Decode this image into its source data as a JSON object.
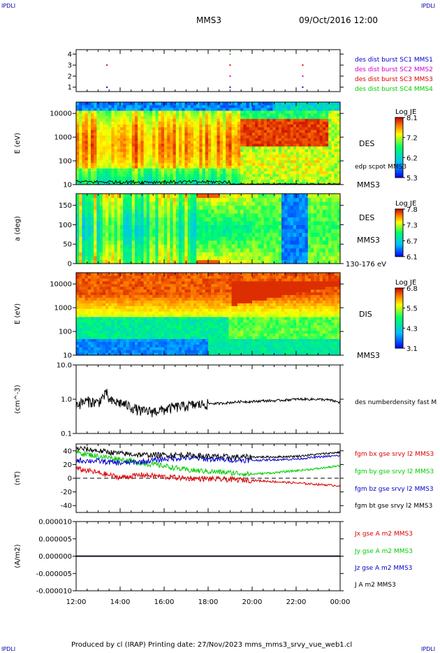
{
  "header": {
    "left_logo": "IPDLI",
    "right_logo": "IPDLI",
    "spacecraft": "MMS3",
    "date": "09/Oct/2016 12:00"
  },
  "footer": {
    "left_logo": "IPDLI",
    "right_logo": "IPDLI",
    "credit": "Produced by cl (IRAP)   Printing date: 27/Nov/2023   mms_mms3_srvy_vue_web1.cl"
  },
  "time_axis": {
    "ticks": [
      "12:00",
      "14:00",
      "16:00",
      "18:00",
      "20:00",
      "22:00",
      "00:00"
    ]
  },
  "colors": {
    "blue": "#0000cc",
    "magenta": "#cc00cc",
    "red": "#dd0000",
    "green": "#00cc00",
    "black": "#000000"
  },
  "chart_data": [
    {
      "type": "scatter",
      "panel": "burst",
      "x_unit": "hours since 12:00",
      "xlim": [
        0,
        12
      ],
      "ylim": [
        0.6,
        4.4
      ],
      "yticks": [
        "1",
        "2",
        "3",
        "4"
      ],
      "legend": [
        {
          "label": "des dist burst SC1 MMS1",
          "color": "#0000cc"
        },
        {
          "label": "des dist burst SC2 MMS2",
          "color": "#cc00cc"
        },
        {
          "label": "des dist burst SC3 MMS3",
          "color": "#dd0000"
        },
        {
          "label": "des dist burst SC4 MMS4",
          "color": "#00cc00"
        }
      ],
      "points": [
        {
          "x": 1.4,
          "y": 1,
          "color": "#0000cc"
        },
        {
          "x": 1.4,
          "y": 3,
          "color": "#dd0000"
        },
        {
          "x": 7.0,
          "y": 4,
          "color": "#00cc00"
        },
        {
          "x": 7.0,
          "y": 3,
          "color": "#dd0000"
        },
        {
          "x": 7.0,
          "y": 2,
          "color": "#cc00cc"
        },
        {
          "x": 7.0,
          "y": 1,
          "color": "#0000cc"
        },
        {
          "x": 10.3,
          "y": 3,
          "color": "#dd0000"
        },
        {
          "x": 10.3,
          "y": 2,
          "color": "#cc00cc"
        },
        {
          "x": 10.3,
          "y": 1,
          "color": "#0000cc"
        }
      ]
    },
    {
      "type": "heatmap",
      "panel": "des_energy",
      "ylabel": "E (eV)",
      "yscale": "log",
      "ylim": [
        10,
        30000
      ],
      "yticks": [
        "10",
        "100",
        "1000",
        "10000"
      ],
      "label": "DES",
      "spacecraft": "MMS3",
      "overlay_label": "edp scpot MMS3",
      "colorbar": {
        "title": "Log JE",
        "ticks": [
          "8.1",
          "7.2",
          "6.2",
          "5.3"
        ]
      },
      "bands": [
        {
          "t": [
            0,
            7.5
          ],
          "e_range": [
            20,
            2000
          ],
          "level": "green-yellow, variable"
        },
        {
          "t": [
            7.5,
            11.5
          ],
          "e_range": [
            500,
            3000
          ],
          "level": "red"
        },
        {
          "t": [
            0,
            12
          ],
          "e_range": [
            10000,
            30000
          ],
          "level": "blue"
        }
      ]
    },
    {
      "type": "heatmap",
      "panel": "des_pitch",
      "ylabel": "a (deg)",
      "ylim": [
        0,
        180
      ],
      "yticks": [
        "0",
        "50",
        "100",
        "150"
      ],
      "label": "DES",
      "spacecraft": "MMS3",
      "energy_range": "130-176 eV",
      "colorbar": {
        "title": "Log JE",
        "ticks": [
          "7.8",
          "7.3",
          "6.7",
          "6.1"
        ]
      }
    },
    {
      "type": "heatmap",
      "panel": "dis_energy",
      "ylabel": "E (eV)",
      "yscale": "log",
      "ylim": [
        10,
        30000
      ],
      "yticks": [
        "10",
        "100",
        "1000",
        "10000"
      ],
      "label": "DIS",
      "spacecraft": "MMS3",
      "colorbar": {
        "title": "Log JE",
        "ticks": [
          "6.8",
          "5.5",
          "4.3",
          "3.1"
        ]
      }
    },
    {
      "type": "line",
      "panel": "density",
      "ylabel": "(cm^-3)",
      "yscale": "log",
      "ylim": [
        0.1,
        10.0
      ],
      "yticks": [
        "0.1",
        "1.0",
        "10.0"
      ],
      "series": [
        {
          "name": "des numberdensity fast M",
          "color": "#000000",
          "x": [
            0,
            0.5,
            1.0,
            1.4,
            1.5,
            2.0,
            2.5,
            3.0,
            3.5,
            4.0,
            4.5,
            5.0,
            5.5,
            6.0,
            6.5,
            7.0,
            7.5,
            8.0,
            8.5,
            9.0,
            9.5,
            10.0,
            10.5,
            11.0,
            11.5,
            12.0
          ],
          "y": [
            0.7,
            0.9,
            0.8,
            1.5,
            0.9,
            0.8,
            0.6,
            0.45,
            0.45,
            0.5,
            0.6,
            0.65,
            0.7,
            0.75,
            0.75,
            0.8,
            0.85,
            0.85,
            0.9,
            0.9,
            0.95,
            1.0,
            1.0,
            1.0,
            0.95,
            0.8
          ]
        }
      ]
    },
    {
      "type": "line",
      "panel": "bfield",
      "ylabel": "(nT)",
      "ylim": [
        -50,
        50
      ],
      "yticks": [
        "-40",
        "-20",
        "0",
        "20",
        "40"
      ],
      "series": [
        {
          "name": "fgm bx gse srvy l2 MMS3",
          "color": "#dd0000",
          "x": [
            0,
            1,
            2,
            3,
            4,
            5,
            6,
            7,
            8,
            9,
            10,
            11,
            12
          ],
          "y": [
            14,
            8,
            1,
            5,
            2,
            0,
            -1,
            -2,
            -3,
            -5,
            -7,
            -9,
            -11
          ]
        },
        {
          "name": "fgm by gse srvy l2 MMS3",
          "color": "#00cc00",
          "x": [
            0,
            1,
            2,
            3,
            4,
            5,
            6,
            7,
            8,
            9,
            10,
            11,
            12
          ],
          "y": [
            38,
            32,
            28,
            22,
            18,
            12,
            10,
            8,
            6,
            8,
            11,
            14,
            18
          ]
        },
        {
          "name": "fgm bz gse srvy l2 MMS3",
          "color": "#0000cc",
          "x": [
            0,
            1,
            2,
            3,
            4,
            5,
            6,
            7,
            8,
            9,
            10,
            11,
            12
          ],
          "y": [
            26,
            25,
            22,
            24,
            28,
            30,
            28,
            27,
            26,
            27,
            28,
            31,
            33
          ]
        },
        {
          "name": "fgm bt gse srvy l2 MMS3",
          "color": "#000000",
          "x": [
            0,
            1,
            2,
            3,
            4,
            5,
            6,
            7,
            8,
            9,
            10,
            11,
            12
          ],
          "y": [
            44,
            40,
            36,
            34,
            34,
            34,
            32,
            31,
            31,
            31,
            32,
            35,
            38
          ]
        }
      ]
    },
    {
      "type": "line",
      "panel": "current",
      "ylabel": "(A/m2)",
      "ylim": [
        -0.0001,
        0.0001
      ],
      "yticks": [
        "-0.000010",
        "-0.000005",
        "0.000000",
        "0.000005",
        "0.000010"
      ],
      "series": [
        {
          "name": "Jx gse A m2 MMS3",
          "color": "#dd0000",
          "x": [
            0,
            12
          ],
          "y": [
            0,
            0
          ]
        },
        {
          "name": "Jy gse A m2 MMS3",
          "color": "#00cc00",
          "x": [
            0,
            12
          ],
          "y": [
            0,
            0
          ]
        },
        {
          "name": "Jz gse A m2 MMS3",
          "color": "#0000cc",
          "x": [
            0,
            12
          ],
          "y": [
            0,
            0
          ]
        },
        {
          "name": "J A m2 MMS3",
          "color": "#000000",
          "x": [
            0,
            12
          ],
          "y": [
            0,
            0
          ]
        }
      ]
    }
  ]
}
